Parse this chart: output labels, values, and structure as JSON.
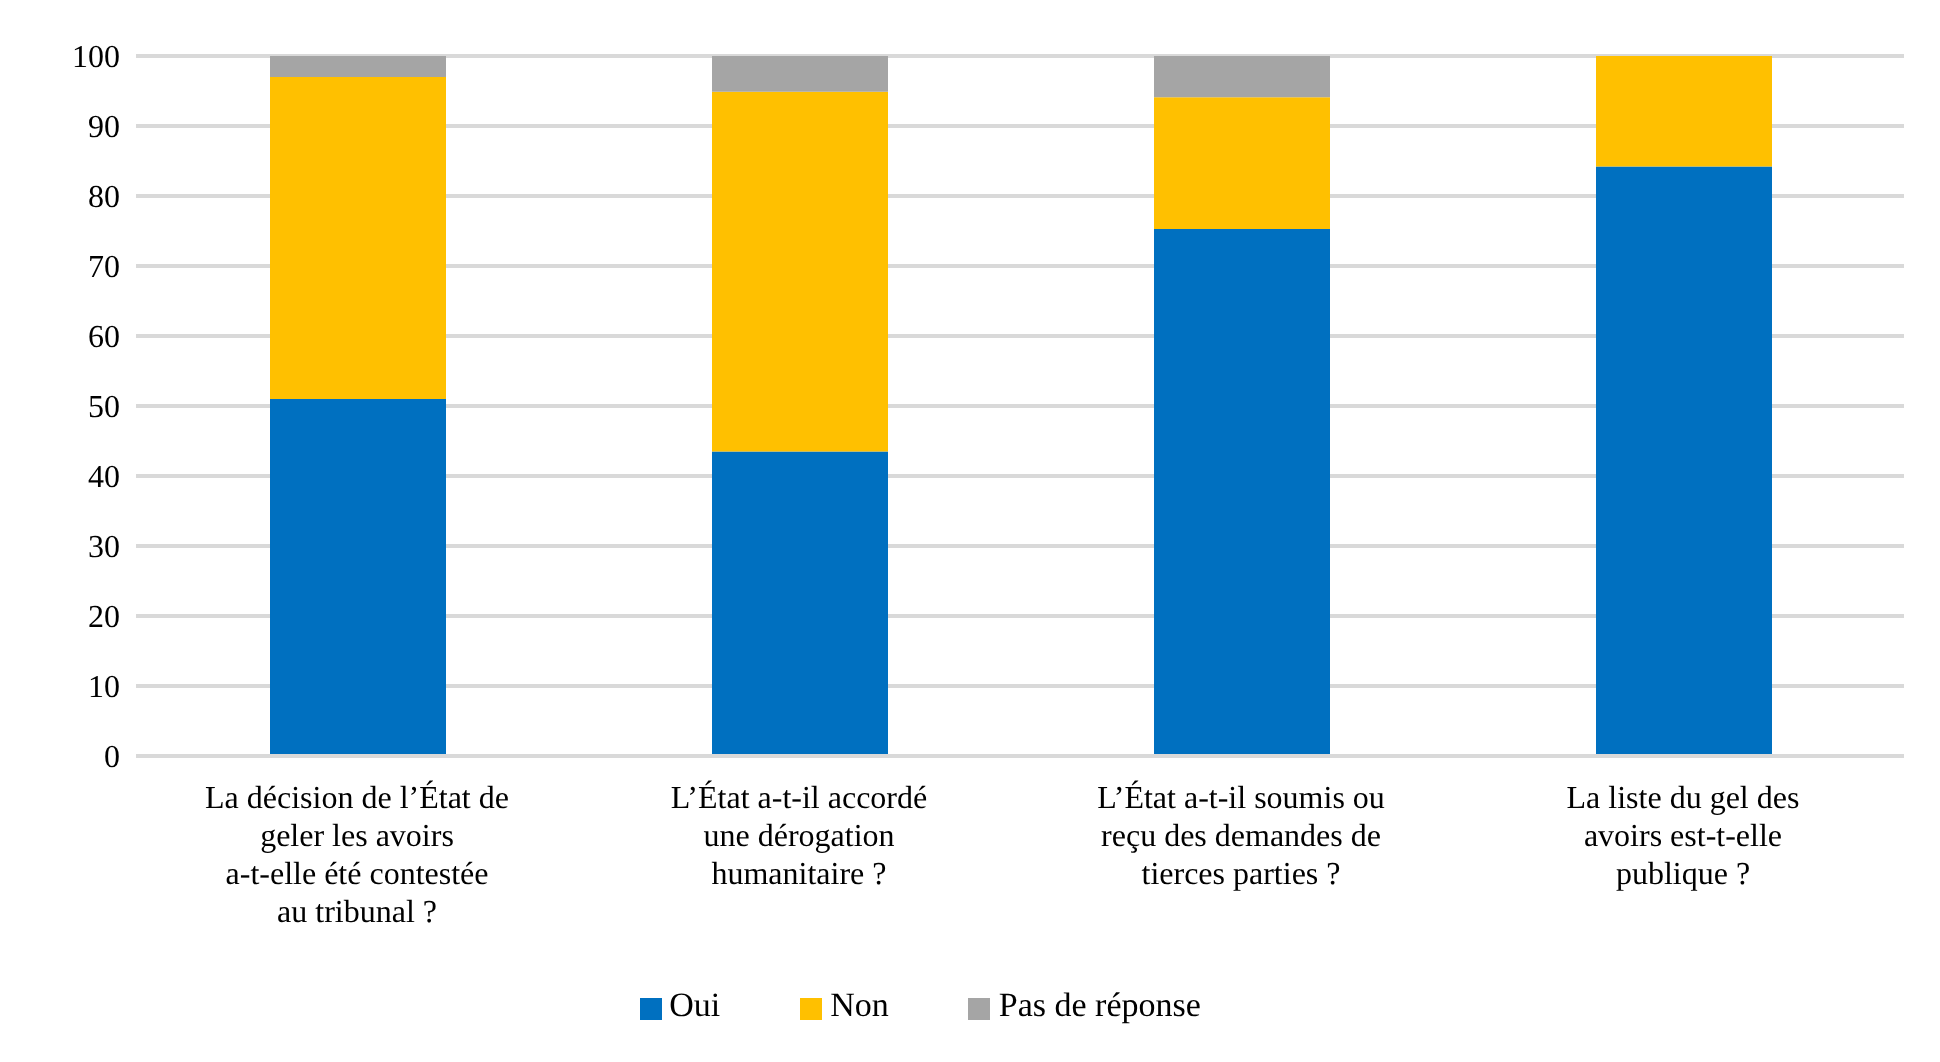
{
  "chart_data": {
    "type": "bar",
    "stacked": true,
    "categories": [
      "La décision de l’État de geler les avoirs a-t-elle été contestée au tribunal ?",
      "L’État a-t-il accordé une dérogation humanitaire ?",
      "L’État a-t-il soumis ou reçu des demandes de tierces parties ?",
      "La liste du gel des avoirs est-t-elle publique ?"
    ],
    "series": [
      {
        "name": "Oui",
        "color": "#0070c0",
        "values": [
          51,
          43.5,
          75.3,
          84.2
        ]
      },
      {
        "name": "Non",
        "color": "#ffc000",
        "values": [
          46,
          51.4,
          18.8,
          15.8
        ]
      },
      {
        "name": "Pas de réponse",
        "color": "#a5a5a5",
        "values": [
          3,
          5.1,
          5.9,
          0
        ]
      }
    ],
    "ylim": [
      0,
      100
    ],
    "yticks": [
      0,
      10,
      20,
      30,
      40,
      50,
      60,
      70,
      80,
      90,
      100
    ],
    "grid": "y",
    "legend": "bottom"
  }
}
